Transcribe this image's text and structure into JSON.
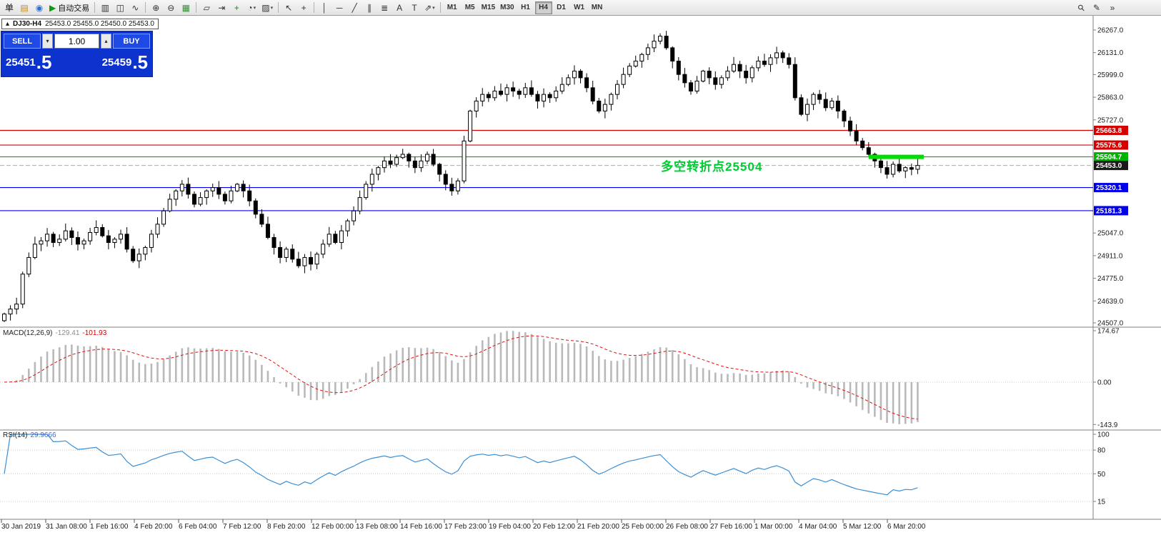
{
  "toolbar": {
    "dropdown_glyph": "▾",
    "groups": [
      {
        "items": [
          {
            "name": "new-order-button",
            "glyph": "单",
            "color": "#111"
          },
          {
            "name": "terminal-icon-button",
            "glyph": "▤",
            "color": "#c08a1e"
          },
          {
            "name": "help-icon-button",
            "glyph": "◉",
            "color": "#2a6fd6"
          },
          {
            "name": "autotrade-button",
            "glyph": "▶",
            "label": "自动交易",
            "color": "#0a9a0a"
          }
        ]
      },
      {
        "items": [
          {
            "name": "bar-chart-button",
            "glyph": "▥",
            "color": "#333"
          },
          {
            "name": "candlestick-button",
            "glyph": "◫",
            "color": "#333"
          },
          {
            "name": "line-chart-button",
            "glyph": "∿",
            "color": "#333"
          }
        ]
      },
      {
        "items": [
          {
            "name": "zoom-in-button",
            "glyph": "⊕",
            "color": "#333"
          },
          {
            "name": "zoom-out-button",
            "glyph": "⊖",
            "color": "#333"
          },
          {
            "name": "tile-windows-button",
            "glyph": "▦",
            "color": "#2f8f2f"
          }
        ]
      },
      {
        "items": [
          {
            "name": "arrange-windows-button",
            "glyph": "▱",
            "color": "#333"
          },
          {
            "name": "chart-shift-button",
            "glyph": "⇥",
            "color": "#333"
          },
          {
            "name": "indicators-button",
            "glyph": "+",
            "color": "#0a9a0a"
          },
          {
            "name": "periods-button",
            "glyph": "◔",
            "color": "#333",
            "dropdown": true
          },
          {
            "name": "templates-button",
            "glyph": "▨",
            "color": "#333",
            "dropdown": true
          }
        ]
      },
      {
        "items": [
          {
            "name": "cursor-button",
            "glyph": "↖",
            "color": "#333"
          },
          {
            "name": "crosshair-button",
            "glyph": "+",
            "color": "#333"
          }
        ]
      },
      {
        "items": [
          {
            "name": "vertical-line-button",
            "glyph": "│",
            "color": "#333"
          },
          {
            "name": "horizontal-line-button",
            "glyph": "─",
            "color": "#333"
          },
          {
            "name": "trendline-button",
            "glyph": "╱",
            "color": "#333"
          },
          {
            "name": "channel-button",
            "glyph": "∥",
            "color": "#333"
          },
          {
            "name": "fibonacci-button",
            "glyph": "≣",
            "color": "#333"
          },
          {
            "name": "text-button",
            "glyph": "A",
            "color": "#333"
          },
          {
            "name": "text-label-button",
            "glyph": "T",
            "color": "#333"
          },
          {
            "name": "shapes-button",
            "glyph": "⇗",
            "color": "#333",
            "dropdown": true
          }
        ]
      }
    ],
    "timeframes": [
      "M1",
      "M5",
      "M15",
      "M30",
      "H1",
      "H4",
      "D1",
      "W1",
      "MN"
    ],
    "active_timeframe": "H4",
    "right_items": [
      {
        "name": "symbol-search-button",
        "glyph": "⚲",
        "rotate": true
      },
      {
        "name": "edit-chart-button",
        "glyph": "✎"
      },
      {
        "name": "toolbar-overflow-button",
        "glyph": "»"
      }
    ]
  },
  "chart_header": {
    "marker": "▴",
    "symbol": "DJ30-H4",
    "ohlc": "25453.0 25455.0 25450.0 25453.0"
  },
  "trade_panel": {
    "sell_label": "SELL",
    "buy_label": "BUY",
    "volume": "1.00",
    "step_down_glyph": "▾",
    "step_up_glyph": "▴",
    "sell_price_main": "25451",
    "sell_price_frac": ".5",
    "buy_price_main": "25459",
    "buy_price_frac": ".5"
  },
  "annotation": {
    "text": "多空转折点25504",
    "color": "#00cc33"
  },
  "macd": {
    "label": "MACD(12,26,9)",
    "value1": "-129.41",
    "value2": "-101.93"
  },
  "rsi": {
    "label": "RSI(14)",
    "value": "29.9666"
  },
  "chart_data": {
    "type": "candlestick",
    "symbol": "DJ30",
    "timeframe": "H4",
    "price_axis": {
      "top": 26267.0,
      "bottom": 24507.0,
      "tick_labels": [
        "26267.0",
        "26131.0",
        "25999.0",
        "25863.0",
        "25727.0",
        "25047.0",
        "24911.0",
        "24775.0",
        "24639.0",
        "24507.0"
      ]
    },
    "closes": [
      24560,
      24590,
      24620,
      24800,
      24900,
      24980,
      25000,
      25040,
      24990,
      25010,
      25060,
      25020,
      24980,
      25000,
      25050,
      25080,
      25030,
      24990,
      25010,
      25040,
      24950,
      24880,
      24920,
      24960,
      25040,
      25100,
      25180,
      25250,
      25300,
      25340,
      25280,
      25220,
      25260,
      25300,
      25320,
      25280,
      25240,
      25300,
      25340,
      25300,
      25240,
      25160,
      25100,
      25020,
      24960,
      24900,
      24950,
      24890,
      24850,
      24900,
      24860,
      24920,
      24980,
      25040,
      24990,
      25060,
      25120,
      25180,
      25260,
      25340,
      25400,
      25440,
      25480,
      25460,
      25500,
      25520,
      25480,
      25440,
      25480,
      25520,
      25460,
      25400,
      25340,
      25300,
      25360,
      25600,
      25780,
      25840,
      25880,
      25860,
      25900,
      25880,
      25920,
      25900,
      25880,
      25920,
      25880,
      25840,
      25880,
      25860,
      25900,
      25940,
      25980,
      26020,
      25980,
      25920,
      25840,
      25780,
      25820,
      25880,
      25940,
      26000,
      26050,
      26080,
      26120,
      26160,
      26200,
      26230,
      26160,
      26080,
      26000,
      25950,
      25900,
      25960,
      26020,
      25980,
      25940,
      25980,
      26020,
      26060,
      26020,
      25980,
      26040,
      26080,
      26060,
      26100,
      26130,
      26100,
      26060,
      25860,
      25760,
      25820,
      25880,
      25850,
      25800,
      25840,
      25780,
      25720,
      25660,
      25600,
      25560,
      25520,
      25480,
      25440,
      25400,
      25460,
      25420,
      25440,
      25430,
      25453
    ],
    "hlines": [
      {
        "price": 25663.8,
        "color": "#d40000"
      },
      {
        "price": 25575.6,
        "color": "#d40000"
      },
      {
        "price": 25504.7,
        "color": "#00b300"
      },
      {
        "price": 25320.1,
        "color": "#0000e6"
      },
      {
        "price": 25181.3,
        "color": "#0000e6"
      }
    ],
    "current_price": 25453.0,
    "price_badges": [
      {
        "label": "25663.8",
        "price": 25663.8,
        "color": "#d40000"
      },
      {
        "label": "25575.6",
        "price": 25575.6,
        "color": "#d40000"
      },
      {
        "label": "25504.7",
        "price": 25504.7,
        "color": "#00b300"
      },
      {
        "label": "25453.0",
        "price": 25453.0,
        "color": "#1a1a1a"
      },
      {
        "label": "25320.1",
        "price": 25320.1,
        "color": "#0000e6"
      },
      {
        "label": "25181.3",
        "price": 25181.3,
        "color": "#0000e6"
      }
    ],
    "green_segment": {
      "price": 25504.7,
      "from_index": 141,
      "to_index": 150,
      "color": "#00dd00",
      "width": 6
    },
    "indicators": {
      "macd": {
        "params": [
          12,
          26,
          9
        ],
        "axis": [
          "174.67",
          "0.00",
          "-143.9"
        ]
      },
      "rsi": {
        "params": [
          14
        ],
        "levels": [
          80,
          50,
          15
        ],
        "axis": [
          "100",
          "80",
          "50",
          "15"
        ]
      }
    },
    "time_labels": [
      "30 Jan 2019",
      "31 Jan 08:00",
      "1 Feb 16:00",
      "4 Feb 20:00",
      "6 Feb 04:00",
      "7 Feb 12:00",
      "8 Feb 20:00",
      "12 Feb 00:00",
      "13 Feb 08:00",
      "14 Feb 16:00",
      "17 Feb 23:00",
      "19 Feb 04:00",
      "20 Feb 12:00",
      "21 Feb 20:00",
      "25 Feb 00:00",
      "26 Feb 08:00",
      "27 Feb 16:00",
      "1 Mar 00:00",
      "4 Mar 04:00",
      "5 Mar 12:00",
      "6 Mar 20:00"
    ]
  }
}
